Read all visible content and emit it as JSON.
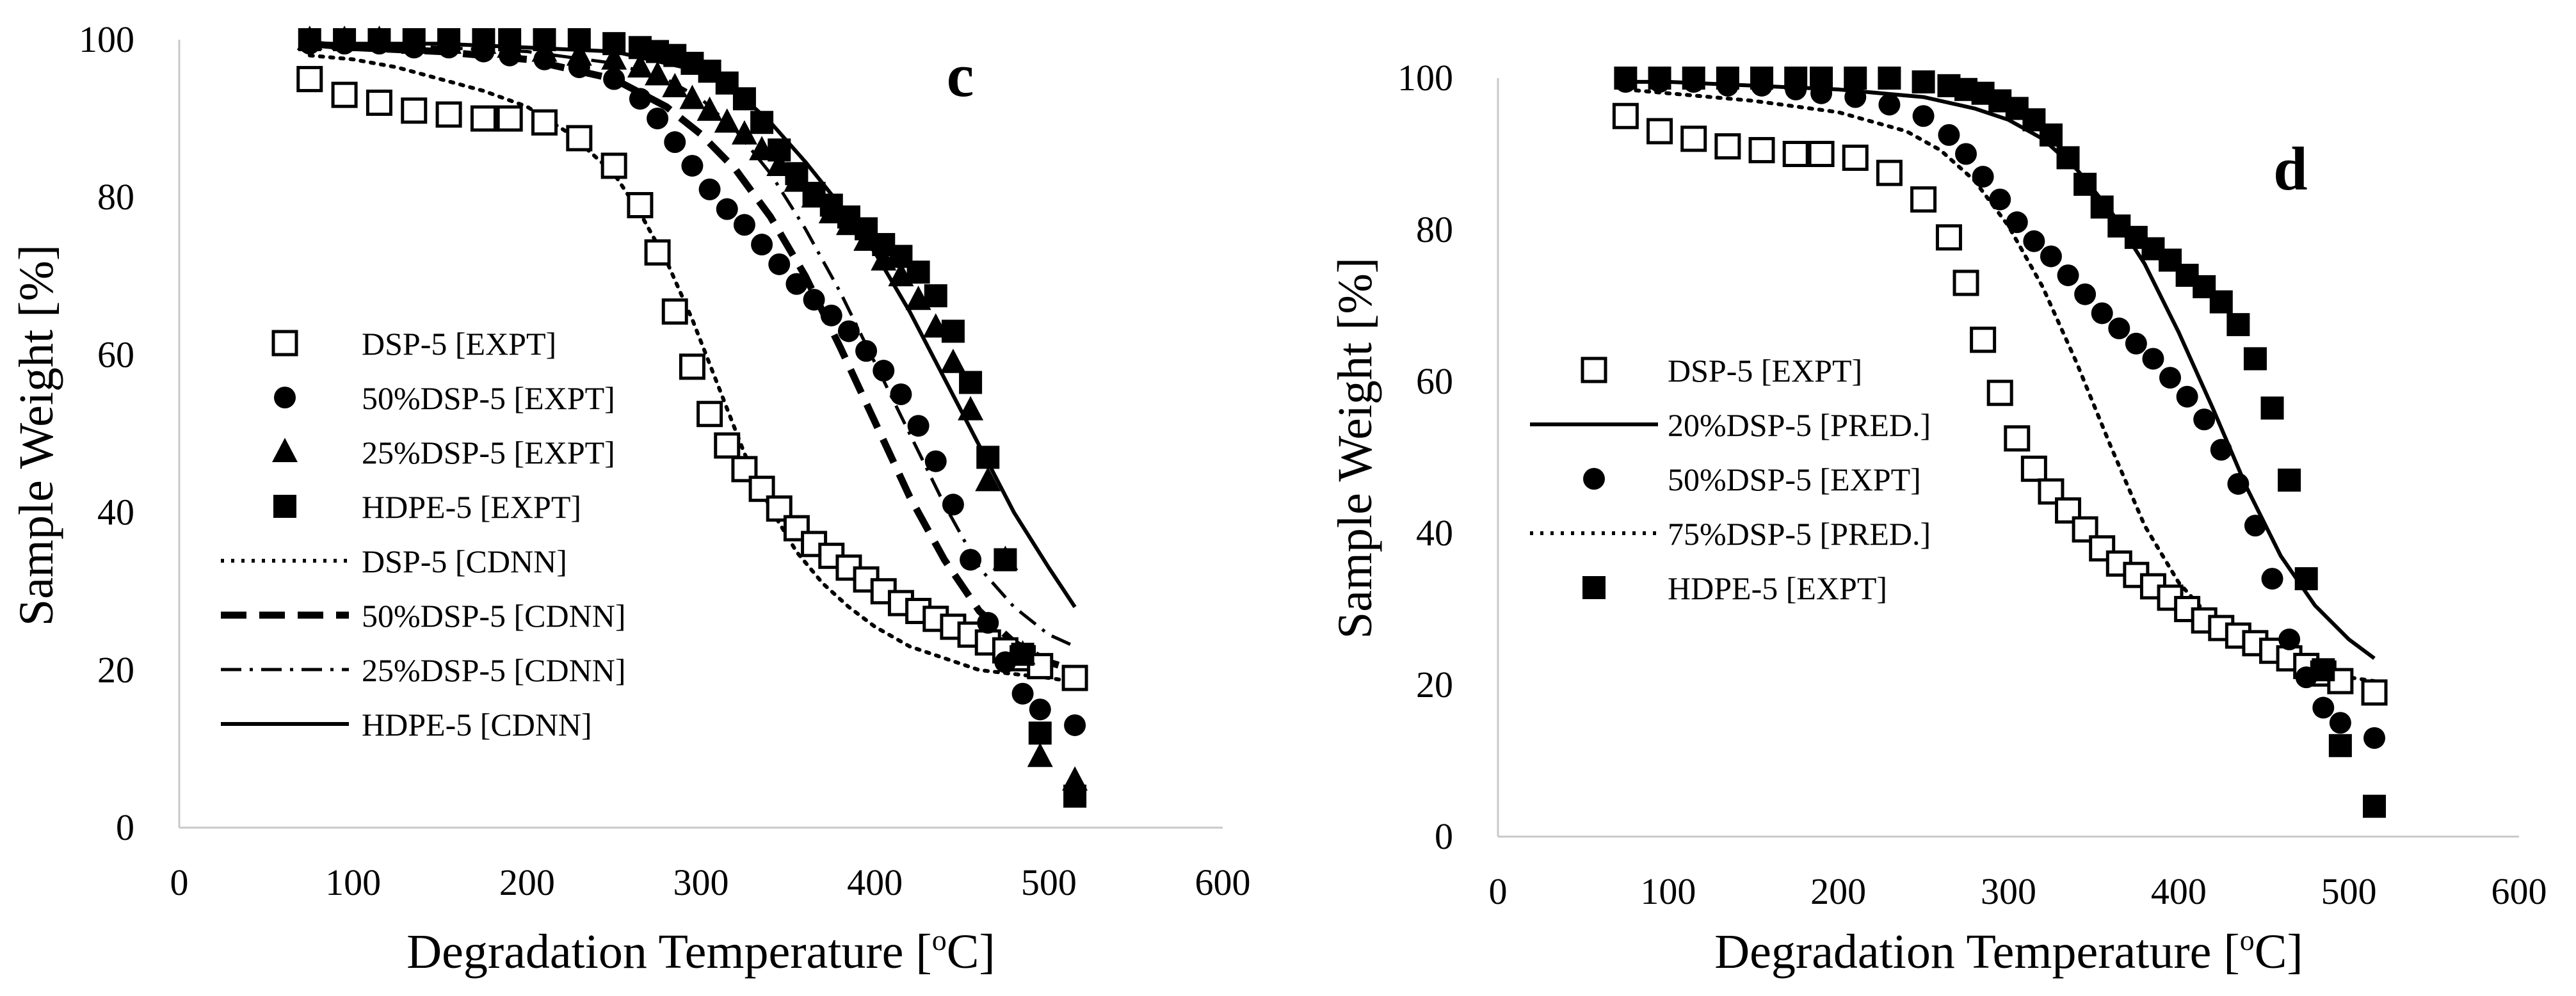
{
  "chart_data": [
    {
      "type": "scatter",
      "panel_label": "c",
      "xlabel": "Degradation Temperature [",
      "xlabel_sup": "o",
      "xlabel_tail": "C]",
      "ylabel": "Sample Weight [%]",
      "xlim": [
        0,
        600
      ],
      "ylim": [
        0,
        100
      ],
      "xticks": [
        0,
        100,
        200,
        300,
        400,
        500,
        600
      ],
      "yticks": [
        0,
        20,
        40,
        60,
        80,
        100
      ],
      "legend_position": "center-left",
      "series": [
        {
          "name": "DSP-5 [EXPT]",
          "kind": "marker",
          "marker": "open-square",
          "x": [
            75,
            95,
            115,
            135,
            155,
            175,
            190,
            210,
            230,
            250,
            265,
            275,
            285,
            295,
            305,
            315,
            325,
            335,
            345,
            355,
            365,
            375,
            385,
            395,
            405,
            415,
            425,
            435,
            445,
            455,
            465,
            475,
            485,
            495,
            515
          ],
          "y": [
            95,
            93,
            92,
            91,
            90.5,
            90,
            90,
            89.5,
            87.5,
            84,
            79,
            73,
            65.5,
            58.5,
            52.5,
            48.5,
            45.5,
            43,
            40.5,
            38,
            36,
            34.5,
            33,
            31.5,
            30,
            28.5,
            27.5,
            26.5,
            25.5,
            24.5,
            23.5,
            22.5,
            21.5,
            20.5,
            19
          ]
        },
        {
          "name": "50%DSP-5 [EXPT]",
          "kind": "marker",
          "marker": "filled-circle",
          "x": [
            75,
            95,
            115,
            135,
            155,
            175,
            190,
            210,
            230,
            250,
            265,
            275,
            285,
            295,
            305,
            315,
            325,
            335,
            345,
            355,
            365,
            375,
            385,
            395,
            405,
            415,
            425,
            435,
            445,
            455,
            465,
            475,
            485,
            495,
            515
          ],
          "y": [
            99.5,
            99.5,
            99.5,
            99,
            99,
            98.5,
            98,
            97.5,
            96.5,
            95,
            92.5,
            90,
            87,
            84,
            81,
            78.5,
            76.5,
            74,
            71.5,
            69,
            67,
            65,
            63,
            60.5,
            58,
            55,
            51,
            46.5,
            41,
            34,
            26,
            21,
            17,
            15,
            13
          ]
        },
        {
          "name": "25%DSP-5 [EXPT]",
          "kind": "marker",
          "marker": "filled-triangle",
          "x": [
            75,
            95,
            115,
            135,
            155,
            175,
            190,
            210,
            230,
            250,
            265,
            275,
            285,
            295,
            305,
            315,
            325,
            335,
            345,
            355,
            365,
            375,
            385,
            395,
            405,
            415,
            425,
            435,
            445,
            455,
            465,
            475,
            485,
            495,
            515
          ],
          "y": [
            100,
            100,
            100,
            99.5,
            99.5,
            99.5,
            99,
            98.5,
            98,
            97.5,
            96.5,
            95.5,
            94,
            92.5,
            91,
            89.5,
            88,
            86,
            84,
            82,
            80,
            78,
            76.5,
            74.5,
            72,
            70,
            67,
            63.5,
            59,
            53,
            44,
            34,
            22,
            9,
            6
          ]
        },
        {
          "name": "HDPE-5 [EXPT]",
          "kind": "marker",
          "marker": "filled-square",
          "x": [
            75,
            95,
            115,
            135,
            155,
            175,
            190,
            210,
            230,
            250,
            265,
            275,
            285,
            295,
            305,
            315,
            325,
            335,
            345,
            355,
            365,
            375,
            385,
            395,
            405,
            415,
            425,
            435,
            445,
            455,
            465,
            475,
            485,
            495,
            515
          ],
          "y": [
            100,
            100,
            100,
            100,
            100,
            100,
            100,
            100,
            100,
            99.5,
            99,
            98.5,
            98,
            97,
            96,
            94.5,
            92.5,
            89.5,
            86,
            83,
            80.5,
            79,
            77.5,
            76,
            74,
            72.5,
            70.5,
            67.5,
            63,
            56.5,
            47,
            34,
            22,
            12,
            4
          ]
        },
        {
          "name": "DSP-5 [CDNN]",
          "kind": "line",
          "dash": "dotted",
          "x": [
            75,
            100,
            125,
            150,
            175,
            200,
            225,
            250,
            265,
            280,
            295,
            310,
            325,
            340,
            355,
            370,
            385,
            400,
            420,
            440,
            460,
            480,
            500,
            515
          ],
          "y": [
            98,
            97.5,
            96.5,
            95,
            93.5,
            91.5,
            88,
            83,
            78,
            72,
            64.5,
            56,
            47.5,
            40.5,
            35,
            31,
            28,
            25.5,
            23,
            21.5,
            20,
            19.5,
            19,
            18.5
          ]
        },
        {
          "name": "50%DSP-5 [CDNN]",
          "kind": "line",
          "dash": "dashed",
          "x": [
            75,
            100,
            150,
            200,
            250,
            280,
            300,
            320,
            340,
            360,
            380,
            400,
            420,
            440,
            460,
            480,
            500,
            515
          ],
          "y": [
            99.5,
            99,
            98.5,
            97.5,
            95,
            91.5,
            88,
            83.5,
            77.5,
            70,
            61,
            51.5,
            42,
            34,
            27.5,
            23.5,
            21,
            20
          ]
        },
        {
          "name": "25%DSP-5 [CDNN]",
          "kind": "line",
          "dash": "dashdot",
          "x": [
            75,
            100,
            150,
            200,
            250,
            280,
            300,
            320,
            340,
            360,
            380,
            400,
            420,
            440,
            460,
            480,
            500,
            515
          ],
          "y": [
            99.5,
            99.5,
            99,
            98.5,
            97,
            95,
            92.5,
            88.5,
            83,
            76,
            68,
            59,
            50,
            41,
            33,
            28,
            24.5,
            23
          ]
        },
        {
          "name": "HDPE-5 [CDNN]",
          "kind": "line",
          "dash": "solid",
          "x": [
            75,
            100,
            150,
            200,
            250,
            300,
            320,
            340,
            360,
            380,
            400,
            420,
            440,
            460,
            480,
            500,
            515
          ],
          "y": [
            99.5,
            99.5,
            99.5,
            99,
            98.5,
            96,
            93.5,
            89.5,
            84.5,
            79,
            73,
            65.5,
            57,
            48.5,
            40,
            33,
            28
          ]
        }
      ]
    },
    {
      "type": "scatter",
      "panel_label": "d",
      "xlabel": "Degradation Temperature [",
      "xlabel_sup": "o",
      "xlabel_tail": "C]",
      "ylabel": "Sample Weight [%]",
      "xlim": [
        0,
        600
      ],
      "ylim": [
        0,
        100
      ],
      "xticks": [
        0,
        100,
        200,
        300,
        400,
        500,
        600
      ],
      "yticks": [
        0,
        20,
        40,
        60,
        80,
        100
      ],
      "legend_position": "center-left",
      "series": [
        {
          "name": "DSP-5 [EXPT]",
          "kind": "marker",
          "marker": "open-square",
          "x": [
            75,
            95,
            115,
            135,
            155,
            175,
            190,
            210,
            230,
            250,
            265,
            275,
            285,
            295,
            305,
            315,
            325,
            335,
            345,
            355,
            365,
            375,
            385,
            395,
            405,
            415,
            425,
            435,
            445,
            455,
            465,
            475,
            485,
            495,
            515
          ],
          "y": [
            95,
            93,
            92,
            91,
            90.5,
            90,
            90,
            89.5,
            87.5,
            84,
            79,
            73,
            65.5,
            58.5,
            52.5,
            48.5,
            45.5,
            43,
            40.5,
            38,
            36,
            34.5,
            33,
            31.5,
            30,
            28.5,
            27.5,
            26.5,
            25.5,
            24.5,
            23.5,
            22.5,
            21.5,
            20.5,
            19
          ]
        },
        {
          "name": "20%DSP-5 [PRED.]",
          "kind": "line",
          "dash": "solid",
          "x": [
            75,
            100,
            150,
            200,
            250,
            280,
            300,
            320,
            340,
            360,
            380,
            400,
            420,
            440,
            460,
            480,
            500,
            515
          ],
          "y": [
            99.5,
            99.5,
            99,
            98.5,
            97.5,
            96,
            94.5,
            92,
            88,
            82.5,
            75.5,
            66.5,
            56.5,
            46,
            37,
            30.5,
            26,
            23.5
          ]
        },
        {
          "name": "50%DSP-5 [EXPT]",
          "kind": "marker",
          "marker": "filled-circle",
          "x": [
            75,
            95,
            115,
            135,
            155,
            175,
            190,
            210,
            230,
            250,
            265,
            275,
            285,
            295,
            305,
            315,
            325,
            335,
            345,
            355,
            365,
            375,
            385,
            395,
            405,
            415,
            425,
            435,
            445,
            455,
            465,
            475,
            485,
            495,
            515
          ],
          "y": [
            99.5,
            99.5,
            99.5,
            99,
            99,
            98.5,
            98,
            97.5,
            96.5,
            95,
            92.5,
            90,
            87,
            84,
            81,
            78.5,
            76.5,
            74,
            71.5,
            69,
            67,
            65,
            63,
            60.5,
            58,
            55,
            51,
            46.5,
            41,
            34,
            26,
            21,
            17,
            15,
            13
          ]
        },
        {
          "name": "75%DSP-5 [PRED.]",
          "kind": "line",
          "dash": "dotted",
          "x": [
            75,
            100,
            150,
            200,
            240,
            260,
            280,
            300,
            320,
            340,
            360,
            380,
            400,
            420,
            440,
            460,
            480,
            500,
            515
          ],
          "y": [
            98.5,
            98,
            97,
            95.5,
            93,
            90.5,
            86.5,
            80.5,
            72.5,
            62.5,
            51.5,
            41,
            33.5,
            28.5,
            25.5,
            23.5,
            22,
            21,
            20.5
          ]
        },
        {
          "name": "HDPE-5 [EXPT]",
          "kind": "marker",
          "marker": "filled-square",
          "x": [
            75,
            95,
            115,
            135,
            155,
            175,
            190,
            210,
            230,
            250,
            265,
            275,
            285,
            295,
            305,
            315,
            325,
            335,
            345,
            355,
            365,
            375,
            385,
            395,
            405,
            415,
            425,
            435,
            445,
            455,
            465,
            475,
            485,
            495,
            515
          ],
          "y": [
            100,
            100,
            100,
            100,
            100,
            100,
            100,
            100,
            100,
            99.5,
            99,
            98.5,
            98,
            97,
            96,
            94.5,
            92.5,
            89.5,
            86,
            83,
            80.5,
            79,
            77.5,
            76,
            74,
            72.5,
            70.5,
            67.5,
            63,
            56.5,
            47,
            34,
            22,
            12,
            4
          ]
        }
      ]
    }
  ]
}
